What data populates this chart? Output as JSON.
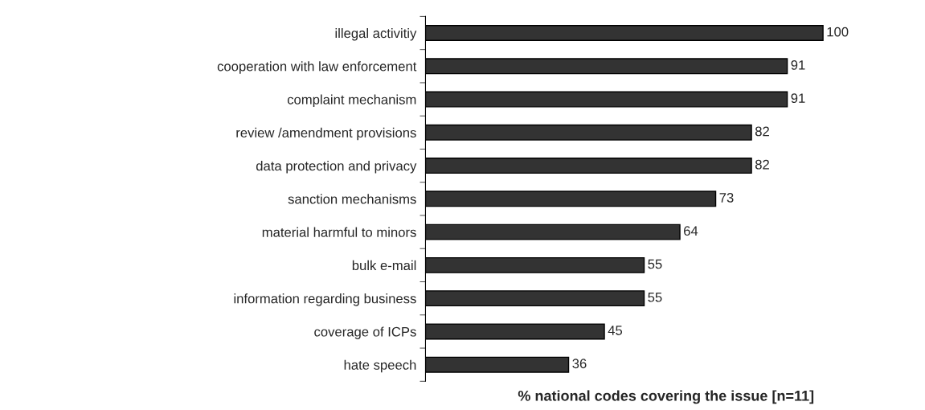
{
  "chart_data": {
    "type": "bar",
    "orientation": "horizontal",
    "xlabel": "% national codes covering the issue [n=11]",
    "categories": [
      "illegal activitiy",
      "cooperation with law enforcement",
      "complaint mechanism",
      "review /amendment provisions",
      "data protection and privacy",
      "sanction mechanisms",
      "material harmful to minors",
      "bulk e-mail",
      "information regarding business",
      "coverage of ICPs",
      "hate speech"
    ],
    "values": [
      100,
      91,
      91,
      82,
      82,
      73,
      64,
      55,
      55,
      45,
      36
    ],
    "color": "#333333",
    "data_labels": true
  }
}
